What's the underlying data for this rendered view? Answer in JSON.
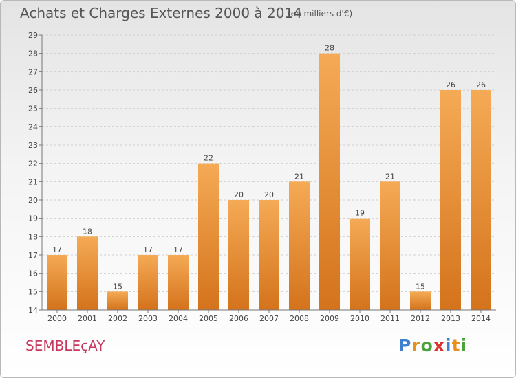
{
  "header": {
    "title": "Achats et Charges Externes 2000 à 2014",
    "subtitle": "(en milliers d'€)"
  },
  "footer": {
    "place": "SEMBLEçAY",
    "logo": "Proxiti",
    "logo_colors": [
      "#3f7fcf",
      "#e8901b",
      "#4aa23c",
      "#d8332f",
      "#3f7fcf",
      "#e8901b",
      "#4aa23c"
    ]
  },
  "chart_data": {
    "type": "bar",
    "title": "Achats et Charges Externes 2000 à 2014",
    "subtitle": "(en milliers d'€)",
    "xlabel": "",
    "ylabel": "",
    "categories": [
      "2000",
      "2001",
      "2002",
      "2003",
      "2004",
      "2005",
      "2006",
      "2007",
      "2008",
      "2009",
      "2010",
      "2011",
      "2012",
      "2013",
      "2014"
    ],
    "values": [
      17,
      18,
      15,
      17,
      17,
      22,
      20,
      20,
      21,
      28,
      19,
      21,
      15,
      26,
      26
    ],
    "value_labels": [
      "17",
      "18",
      "15",
      "17",
      "17",
      "22",
      "20",
      "20",
      "21",
      "28",
      "19",
      "21",
      "15",
      "26",
      "26"
    ],
    "ylim": [
      14,
      29
    ],
    "yticks": [
      "14",
      "15",
      "16",
      "17",
      "18",
      "19",
      "20",
      "21",
      "22",
      "23",
      "24",
      "25",
      "26",
      "27",
      "28",
      "29"
    ],
    "grid": "horizontal-dashed",
    "bar_color": "#f0922e",
    "bar_color_light": "#f5aa55",
    "bar_color_dark": "#d4731c"
  }
}
